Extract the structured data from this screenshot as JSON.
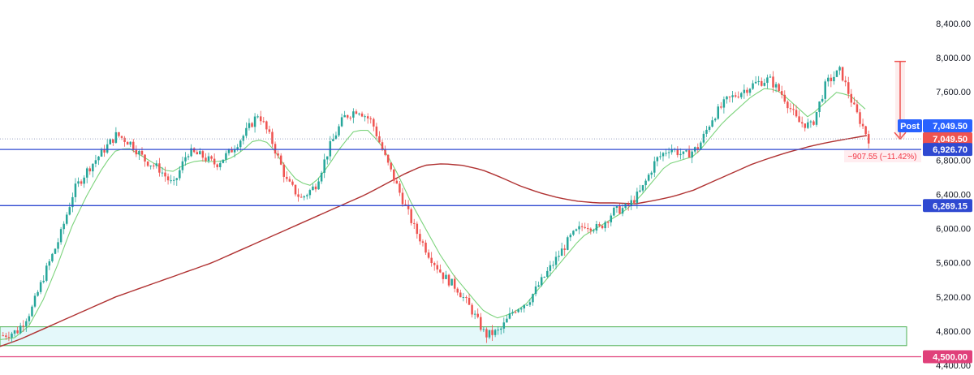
{
  "chart_data": {
    "type": "candlestick",
    "ylim": [
      4400,
      8600
    ],
    "y_ticks": [
      "4,400.00",
      "4,800.00",
      "5,200.00",
      "5,600.00",
      "6,000.00",
      "6,400.00",
      "6,800.00",
      "7,200.00",
      "7,600.00",
      "8,000.00",
      "8,400.00"
    ],
    "y_tick_values": [
      4400,
      4800,
      5200,
      5600,
      6000,
      6400,
      6800,
      7200,
      7600,
      8000,
      8400
    ],
    "price_path": [
      4750,
      4800,
      5050,
      5500,
      5900,
      6450,
      6700,
      6900,
      7100,
      7000,
      6800,
      6700,
      6500,
      6900,
      6850,
      6750,
      6900,
      7100,
      7350,
      7000,
      6550,
      6350,
      6500,
      6950,
      7300,
      7400,
      7250,
      6800,
      6400,
      6000,
      5700,
      5450,
      5300,
      5050,
      4750,
      4800,
      5050,
      5150,
      5400,
      5650,
      5900,
      6050,
      6000,
      6200,
      6250,
      6450,
      6800,
      6950,
      6850,
      6950,
      7300,
      7500,
      7600,
      7700,
      7750,
      7550,
      7250,
      7200,
      7700,
      7850,
      7400,
      7050
    ],
    "sma_fast_path": [
      4700,
      4720,
      4850,
      5150,
      5550,
      6000,
      6350,
      6650,
      6900,
      6950,
      6850,
      6750,
      6650,
      6750,
      6800,
      6780,
      6800,
      6900,
      7050,
      7000,
      6750,
      6550,
      6500,
      6700,
      6950,
      7150,
      7150,
      6950,
      6650,
      6300,
      6000,
      5700,
      5450,
      5250,
      5050,
      4950,
      5000,
      5100,
      5300,
      5500,
      5700,
      5900,
      6000,
      6100,
      6200,
      6350,
      6550,
      6750,
      6800,
      6850,
      7050,
      7250,
      7400,
      7550,
      7650,
      7600,
      7450,
      7300,
      7450,
      7600,
      7550,
      7400
    ],
    "sma_slow_path": [
      4620,
      4700,
      4800,
      4900,
      5000,
      5100,
      5200,
      5280,
      5360,
      5440,
      5520,
      5600,
      5700,
      5800,
      5900,
      6000,
      6100,
      6200,
      6300,
      6400,
      6520,
      6640,
      6740,
      6760,
      6740,
      6690,
      6600,
      6500,
      6420,
      6360,
      6320,
      6300,
      6300,
      6290,
      6330,
      6380,
      6450,
      6550,
      6650,
      6750,
      6830,
      6900,
      6960,
      7010,
      7050,
      7090
    ],
    "horizontal_levels": [
      {
        "value": 6926.7,
        "color": "#2f49d1",
        "label": "6,926.70"
      },
      {
        "value": 6269.15,
        "color": "#2f49d1",
        "label": "6,269.15"
      },
      {
        "value": 4500.0,
        "color": "#e0407a",
        "label": "4,500.00"
      }
    ],
    "support_zone": {
      "low": 4630,
      "high": 4850,
      "color": "#4caf50"
    },
    "last_price": {
      "value": 7049.5,
      "label": "7,049.50",
      "post_label": "Post",
      "post_value": "7,049.50"
    },
    "measure": {
      "from": 7957.05,
      "to": 7049.5,
      "change": "−907.55 (−11.42%)"
    },
    "colors": {
      "up": "#26a69a",
      "down": "#ef5350",
      "sma_fast": "#7bd37b",
      "sma_slow": "#b03232",
      "accent": "#2962ff"
    }
  }
}
